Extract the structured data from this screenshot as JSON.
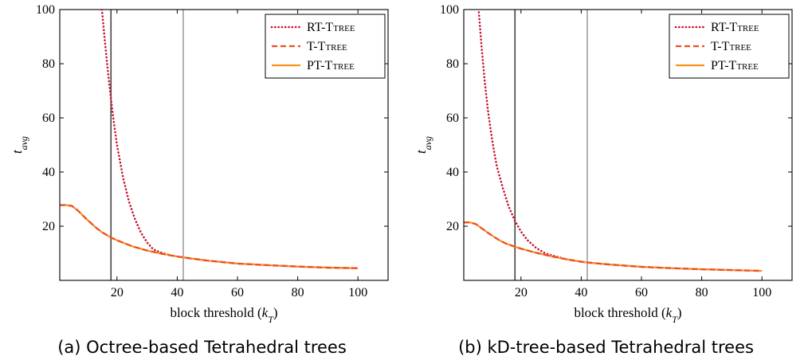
{
  "chart_data": [
    {
      "type": "line",
      "caption": "(a) Octree-based Tetrahedral trees",
      "xlabel": "block threshold (k_T)",
      "ylabel": "t_avg",
      "xlim": [
        1,
        110
      ],
      "ylim": [
        0,
        100
      ],
      "xticks": [
        20,
        40,
        60,
        80,
        100
      ],
      "yticks": [
        20,
        40,
        60,
        80,
        100
      ],
      "vlines": [
        18,
        42
      ],
      "legend_position": "top-right",
      "series": [
        {
          "name": "RT-Ttree",
          "style": "dotted",
          "color": "#c8102e",
          "x": [
            15,
            16,
            17,
            18,
            19,
            20,
            22,
            24,
            26,
            28,
            30,
            32,
            34,
            36,
            38,
            40,
            42,
            45,
            50,
            60,
            70,
            80,
            90,
            100
          ],
          "y": [
            100,
            88,
            77,
            67,
            58,
            50,
            38,
            29,
            22.5,
            17.5,
            14,
            11.5,
            10.5,
            9.8,
            9.2,
            8.8,
            8.5,
            8.0,
            7.3,
            6.2,
            5.6,
            5.1,
            4.7,
            4.5
          ]
        },
        {
          "name": "T-Ttree",
          "style": "dashed",
          "color": "#ef4b22",
          "x": [
            1,
            3,
            5,
            7,
            10,
            13,
            15,
            18,
            20,
            25,
            30,
            35,
            40,
            42,
            50,
            60,
            70,
            80,
            90,
            100
          ],
          "y": [
            27.8,
            27.8,
            27.5,
            25.8,
            22.5,
            19.5,
            17.8,
            15.8,
            14.8,
            12.6,
            11.0,
            9.8,
            8.8,
            8.5,
            7.3,
            6.2,
            5.6,
            5.1,
            4.7,
            4.5
          ]
        },
        {
          "name": "PT-Ttree",
          "style": "solid",
          "color": "#f7941d",
          "x": [
            1,
            3,
            5,
            7,
            10,
            13,
            15,
            18,
            20,
            25,
            30,
            35,
            40,
            42,
            50,
            60,
            70,
            80,
            90,
            100
          ],
          "y": [
            27.8,
            27.8,
            27.5,
            25.8,
            22.5,
            19.5,
            17.8,
            15.8,
            14.8,
            12.6,
            11.0,
            9.8,
            8.8,
            8.5,
            7.3,
            6.2,
            5.6,
            5.1,
            4.7,
            4.5
          ]
        }
      ]
    },
    {
      "type": "line",
      "caption": "(b) kD-tree-based Tetrahedral trees",
      "xlabel": "block threshold (k_T)",
      "ylabel": "t_avg",
      "xlim": [
        1,
        110
      ],
      "ylim": [
        0,
        100
      ],
      "xticks": [
        20,
        40,
        60,
        80,
        100
      ],
      "yticks": [
        20,
        40,
        60,
        80,
        100
      ],
      "vlines": [
        18,
        42
      ],
      "legend_position": "top-right",
      "series": [
        {
          "name": "RT-Ttree",
          "style": "dotted",
          "color": "#c8102e",
          "x": [
            6,
            7,
            8,
            9,
            10,
            11,
            12,
            14,
            16,
            18,
            20,
            22,
            25,
            28,
            30,
            35,
            40,
            42,
            50,
            60,
            70,
            80,
            90,
            100
          ],
          "y": [
            99,
            85,
            73,
            63,
            55,
            48,
            42,
            34,
            27,
            22,
            18,
            15,
            12,
            10,
            9.3,
            7.8,
            6.9,
            6.6,
            5.8,
            5.0,
            4.5,
            4.1,
            3.8,
            3.5
          ]
        },
        {
          "name": "T-Ttree",
          "style": "dashed",
          "color": "#ef4b22",
          "x": [
            1,
            3,
            5,
            7,
            10,
            13,
            15,
            18,
            20,
            25,
            30,
            35,
            40,
            42,
            50,
            60,
            70,
            80,
            90,
            100
          ],
          "y": [
            21.4,
            21.4,
            20.8,
            19.2,
            16.8,
            14.7,
            13.6,
            12.4,
            11.7,
            10.2,
            8.9,
            7.8,
            6.9,
            6.6,
            5.8,
            5.0,
            4.5,
            4.1,
            3.8,
            3.5
          ]
        },
        {
          "name": "PT-Ttree",
          "style": "solid",
          "color": "#f7941d",
          "x": [
            1,
            3,
            5,
            7,
            10,
            13,
            15,
            18,
            20,
            25,
            30,
            35,
            40,
            42,
            50,
            60,
            70,
            80,
            90,
            100
          ],
          "y": [
            21.4,
            21.4,
            20.8,
            19.2,
            16.8,
            14.7,
            13.6,
            12.4,
            11.7,
            10.2,
            8.9,
            7.8,
            6.9,
            6.6,
            5.8,
            5.0,
            4.5,
            4.1,
            3.8,
            3.5
          ]
        }
      ]
    }
  ]
}
